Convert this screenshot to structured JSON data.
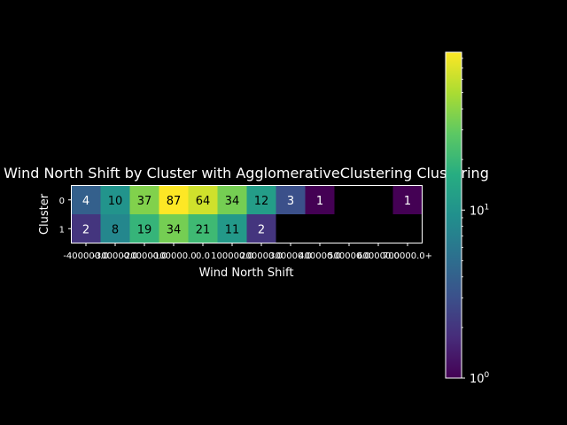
{
  "chart_data": {
    "type": "heatmap",
    "title": "Wind North Shift by Cluster with AgglomerativeClustering Clustering",
    "xlabel": "Wind North Shift",
    "ylabel": "Cluster",
    "x_categories": [
      "-400000.0",
      "-300000.0",
      "-200000.0",
      "-100000.0",
      "0.0",
      "100000.0",
      "200000.0",
      "300000.0",
      "400000.0",
      "500000.0",
      "600000.0",
      "700000.0+"
    ],
    "y_categories": [
      "0",
      "1"
    ],
    "values": [
      [
        4,
        10,
        37,
        87,
        64,
        34,
        12,
        3,
        1,
        null,
        null,
        1
      ],
      [
        2,
        8,
        19,
        34,
        21,
        11,
        2,
        null,
        null,
        null,
        null,
        null
      ]
    ],
    "color_scale": "log",
    "colormap": "viridis",
    "colorbar": {
      "min": 1,
      "max": 87,
      "tick_base": "10",
      "tick_exponents": [
        "0",
        "1"
      ]
    },
    "empty_cell_color": "#000000",
    "grid": false
  }
}
